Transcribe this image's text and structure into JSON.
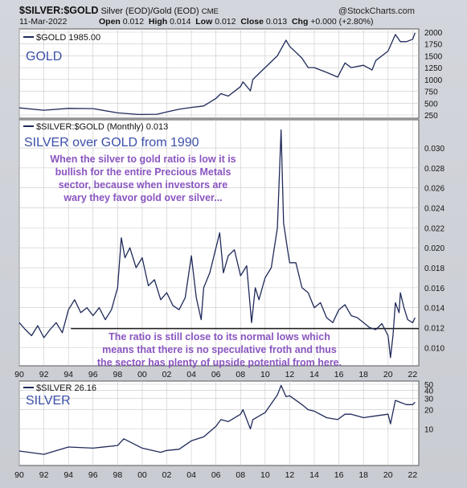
{
  "header": {
    "symbol": "$SILVER:$GOLD",
    "description": "Silver (EOD)/Gold (EOD)",
    "exchange": "CME",
    "brand": "@StockCharts.com",
    "date": "11-Mar-2022",
    "open_label": "Open",
    "open": "0.012",
    "high_label": "High",
    "high": "0.014",
    "low_label": "Low",
    "low": "0.012",
    "close_label": "Close",
    "close": "0.013",
    "chg_label": "Chg",
    "chg": "+0.000 (+2.80%)"
  },
  "panels": {
    "gold": {
      "legend": "$GOLD 1985.00",
      "title": "GOLD"
    },
    "ratio": {
      "legend": "$SILVER:$GOLD (Monthly) 0.013",
      "title": "SILVER over GOLD from 1990",
      "annotation_top": [
        "When the silver to gold ratio is low it is",
        "bullish for the entire Precious Metals",
        "sector, because when investors are",
        "wary they favor gold over silver..."
      ],
      "annotation_bottom": [
        "The ratio is still close to its normal lows which",
        "means that there is no speculative froth and thus",
        "the sector has plenty of upside potential from here."
      ]
    },
    "silver": {
      "legend": "$SILVER 26.16",
      "title": "SILVER"
    }
  },
  "colors": {
    "line": "#1f2a5a",
    "annotation": "#8a55c0",
    "title": "#3b4faa",
    "grid": "#c8c8c8",
    "support_line": "#000000"
  },
  "chart_data": [
    {
      "type": "line",
      "title": "GOLD",
      "series": [
        {
          "name": "$GOLD",
          "x": [
            1990,
            1992,
            1994,
            1996,
            1998,
            1999.7,
            2001.2,
            2002,
            2003,
            2004,
            2005,
            2006,
            2006.4,
            2007,
            2008,
            2008.2,
            2008.8,
            2009,
            2010,
            2011,
            2011.7,
            2012,
            2013,
            2013.5,
            2014,
            2015,
            2015.9,
            2016.5,
            2017,
            2018,
            2018.7,
            2019,
            2020,
            2020.6,
            2021,
            2021.5,
            2022,
            2022.2
          ],
          "values": [
            400,
            350,
            390,
            385,
            295,
            260,
            265,
            315,
            370,
            410,
            440,
            600,
            700,
            650,
            850,
            950,
            760,
            1000,
            1250,
            1500,
            1830,
            1700,
            1450,
            1250,
            1250,
            1150,
            1050,
            1350,
            1250,
            1300,
            1200,
            1400,
            1600,
            1950,
            1800,
            1800,
            1850,
            1985
          ]
        }
      ],
      "ylim": [
        250,
        2000
      ],
      "yticks": [
        250,
        500,
        750,
        1000,
        1250,
        1500,
        1750,
        2000
      ],
      "xlim": [
        1990,
        2022.5
      ]
    },
    {
      "type": "line",
      "title": "SILVER over GOLD from 1990",
      "series": [
        {
          "name": "$SILVER:$GOLD",
          "x": [
            1990,
            1990.5,
            1991,
            1991.5,
            1992,
            1992.5,
            1993,
            1993.5,
            1994,
            1994.5,
            1995,
            1995.5,
            1996,
            1996.5,
            1997,
            1997.5,
            1998,
            1998.3,
            1998.6,
            1999,
            1999.5,
            2000,
            2000.5,
            2001,
            2001.5,
            2002,
            2002.5,
            2003,
            2003.5,
            2004,
            2004.4,
            2004.8,
            2005,
            2005.5,
            2006,
            2006.3,
            2006.6,
            2007,
            2007.5,
            2008,
            2008.5,
            2008.9,
            2009.2,
            2009.5,
            2010,
            2010.5,
            2011,
            2011.3,
            2011.5,
            2011.8,
            2012,
            2012.5,
            2013,
            2013.5,
            2014,
            2014.5,
            2015,
            2015.5,
            2016,
            2016.5,
            2017,
            2017.5,
            2018,
            2018.5,
            2019,
            2019.5,
            2020,
            2020.2,
            2020.4,
            2020.6,
            2020.9,
            2021,
            2021.3,
            2021.6,
            2022,
            2022.2
          ],
          "values": [
            0.0125,
            0.0118,
            0.0112,
            0.0122,
            0.011,
            0.0118,
            0.0125,
            0.0115,
            0.0138,
            0.0148,
            0.0135,
            0.014,
            0.0132,
            0.014,
            0.0128,
            0.0138,
            0.016,
            0.021,
            0.019,
            0.02,
            0.018,
            0.019,
            0.0162,
            0.0168,
            0.0148,
            0.0155,
            0.0142,
            0.0138,
            0.015,
            0.0192,
            0.015,
            0.0128,
            0.016,
            0.0175,
            0.02,
            0.0215,
            0.0175,
            0.0192,
            0.0198,
            0.0172,
            0.0182,
            0.0125,
            0.016,
            0.0148,
            0.017,
            0.018,
            0.022,
            0.0318,
            0.0225,
            0.02,
            0.0185,
            0.0185,
            0.016,
            0.0155,
            0.014,
            0.0145,
            0.013,
            0.0125,
            0.0138,
            0.0143,
            0.0132,
            0.013,
            0.0125,
            0.012,
            0.0118,
            0.0124,
            0.0112,
            0.009,
            0.0112,
            0.0145,
            0.0135,
            0.0155,
            0.014,
            0.0128,
            0.0125,
            0.013
          ]
        }
      ],
      "support_line_value": 0.0119,
      "ylim": [
        0.0085,
        0.0325
      ],
      "yticks": [
        0.01,
        0.012,
        0.014,
        0.016,
        0.018,
        0.02,
        0.022,
        0.024,
        0.026,
        0.028,
        0.03
      ],
      "xlim": [
        1990,
        2022.5
      ],
      "xticks": [
        90,
        92,
        94,
        96,
        98,
        "00",
        "02",
        "04",
        "06",
        "08",
        10,
        12,
        14,
        16,
        18,
        20,
        22
      ]
    },
    {
      "type": "line",
      "title": "SILVER",
      "series": [
        {
          "name": "$SILVER",
          "x": [
            1990,
            1992,
            1994,
            1996,
            1998,
            1998.5,
            2000,
            2001.5,
            2002,
            2003,
            2004,
            2005,
            2006,
            2006.4,
            2007,
            2008,
            2008.2,
            2008.8,
            2009,
            2010,
            2011,
            2011.3,
            2011.7,
            2012,
            2013,
            2013.5,
            2014,
            2015,
            2015.9,
            2016.5,
            2017,
            2018,
            2019,
            2020,
            2020.2,
            2020.6,
            2021,
            2021.5,
            2022,
            2022.2
          ],
          "values": [
            4.5,
            4.0,
            5.2,
            5.0,
            5.5,
            7.0,
            5.0,
            4.3,
            4.6,
            4.8,
            6.5,
            7.5,
            11,
            14,
            13,
            17,
            20,
            10,
            14,
            18,
            34,
            48,
            32,
            33,
            24,
            20,
            19,
            15,
            14,
            17,
            17,
            15,
            16,
            17,
            12,
            28,
            26,
            24,
            24,
            26.16
          ]
        }
      ],
      "ylim": [
        3,
        50
      ],
      "yticks": [
        10,
        20,
        30,
        40,
        50
      ],
      "xlim": [
        1990,
        2022.5
      ],
      "xticks": [
        90,
        92,
        94,
        96,
        98,
        "00",
        "02",
        "04",
        "06",
        "08",
        10,
        12,
        14,
        16,
        18,
        20,
        22
      ]
    }
  ]
}
